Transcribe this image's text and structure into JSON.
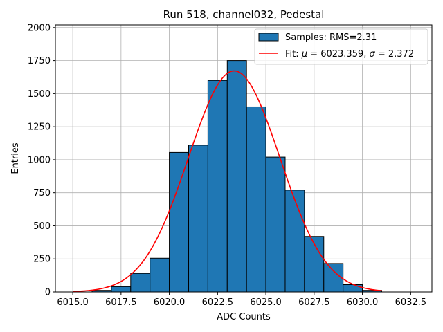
{
  "chart_data": {
    "type": "bar",
    "title": "Run 518, channel032, Pedestal",
    "xlabel": "ADC Counts",
    "ylabel": "Entries",
    "xlim": [
      6014.1,
      6033.6
    ],
    "ylim": [
      0,
      2020
    ],
    "xticks": [
      6015.0,
      6017.5,
      6020.0,
      6022.5,
      6025.0,
      6027.5,
      6030.0,
      6032.5
    ],
    "xtick_labels": [
      "6015.0",
      "6017.5",
      "6020.0",
      "6022.5",
      "6025.0",
      "6027.5",
      "6030.0",
      "6032.5"
    ],
    "yticks": [
      0,
      250,
      500,
      750,
      1000,
      1250,
      1500,
      1750,
      2000
    ],
    "ytick_labels": [
      "0",
      "250",
      "500",
      "750",
      "1000",
      "1250",
      "1500",
      "1750",
      "2000"
    ],
    "grid": true,
    "histogram": {
      "name": "Samples: RMS=2.31",
      "color": "#1f77b4",
      "edge_color": "#000000",
      "bin_edges": [
        6016,
        6017,
        6018,
        6019,
        6020,
        6021,
        6022,
        6023,
        6024,
        6025,
        6026,
        6027,
        6028,
        6029,
        6030,
        6031
      ],
      "counts": [
        12,
        40,
        140,
        255,
        1055,
        1110,
        1600,
        1750,
        1400,
        1020,
        770,
        420,
        215,
        55,
        12
      ]
    },
    "fit": {
      "name_prefix": "Fit: ",
      "name_mu": "μ",
      "name_mid": " = 6023.359, ",
      "name_sigma": "σ",
      "name_end": " = 2.372",
      "mu": 6023.359,
      "sigma": 2.372,
      "amplitude": 1672,
      "x_range": [
        6015.0,
        6031.0
      ],
      "color": "#ff0000"
    },
    "legend_position": "top-right"
  }
}
